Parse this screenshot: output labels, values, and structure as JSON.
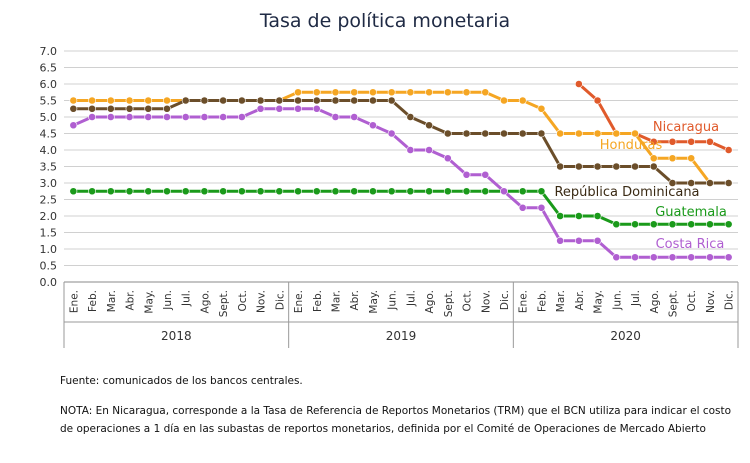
{
  "chart_data": {
    "type": "line",
    "title": "Tasa de política monetaria",
    "ylim": [
      0,
      7
    ],
    "yticks": [
      "7.0",
      "6.5",
      "6.0",
      "5.5",
      "5.0",
      "4.5",
      "4.0",
      "3.5",
      "3.0",
      "2.5",
      "2.0",
      "1.5",
      "1.0",
      "0.5",
      "0.0"
    ],
    "months": [
      "Ene.",
      "Feb.",
      "Mar.",
      "Abr.",
      "May.",
      "Jun.",
      "Jul.",
      "Ago.",
      "Sept.",
      "Oct.",
      "Nov.",
      "Dic."
    ],
    "years": [
      "2018",
      "2019",
      "2020"
    ],
    "grid": true,
    "series": [
      {
        "name": "Nicaragua",
        "color": "#e05a2b",
        "values": [
          null,
          null,
          null,
          null,
          null,
          null,
          null,
          null,
          null,
          null,
          null,
          null,
          null,
          null,
          null,
          null,
          null,
          null,
          null,
          null,
          null,
          null,
          null,
          null,
          null,
          null,
          null,
          6.0,
          5.5,
          4.5,
          4.5,
          4.25,
          4.25,
          4.25,
          4.25,
          4.0
        ]
      },
      {
        "name": "Honduras",
        "color": "#f5a623",
        "values": [
          5.5,
          5.5,
          5.5,
          5.5,
          5.5,
          5.5,
          5.5,
          5.5,
          5.5,
          5.5,
          5.5,
          5.5,
          5.75,
          5.75,
          5.75,
          5.75,
          5.75,
          5.75,
          5.75,
          5.75,
          5.75,
          5.75,
          5.75,
          5.5,
          5.5,
          5.25,
          4.5,
          4.5,
          4.5,
          4.5,
          4.5,
          3.75,
          3.75,
          3.75,
          3.0,
          3.0
        ]
      },
      {
        "name": "República Dominicana",
        "color": "#6b4e2a",
        "values": [
          5.25,
          5.25,
          5.25,
          5.25,
          5.25,
          5.25,
          5.5,
          5.5,
          5.5,
          5.5,
          5.5,
          5.5,
          5.5,
          5.5,
          5.5,
          5.5,
          5.5,
          5.5,
          5.0,
          4.75,
          4.5,
          4.5,
          4.5,
          4.5,
          4.5,
          4.5,
          3.5,
          3.5,
          3.5,
          3.5,
          3.5,
          3.5,
          3.0,
          3.0,
          3.0,
          3.0
        ]
      },
      {
        "name": "Guatemala",
        "color": "#1a9a1a",
        "values": [
          2.75,
          2.75,
          2.75,
          2.75,
          2.75,
          2.75,
          2.75,
          2.75,
          2.75,
          2.75,
          2.75,
          2.75,
          2.75,
          2.75,
          2.75,
          2.75,
          2.75,
          2.75,
          2.75,
          2.75,
          2.75,
          2.75,
          2.75,
          2.75,
          2.75,
          2.75,
          2.0,
          2.0,
          2.0,
          1.75,
          1.75,
          1.75,
          1.75,
          1.75,
          1.75,
          1.75
        ]
      },
      {
        "name": "Costa Rica",
        "color": "#b05fd1",
        "values": [
          4.75,
          5.0,
          5.0,
          5.0,
          5.0,
          5.0,
          5.0,
          5.0,
          5.0,
          5.0,
          5.25,
          5.25,
          5.25,
          5.25,
          5.0,
          5.0,
          4.75,
          4.5,
          4.0,
          4.0,
          3.75,
          3.25,
          3.25,
          2.75,
          2.25,
          2.25,
          1.25,
          1.25,
          1.25,
          0.75,
          0.75,
          0.75,
          0.75,
          0.75,
          0.75,
          0.75
        ]
      }
    ]
  },
  "notes": {
    "source": "Fuente: comunicados de los bancos centrales.",
    "nota": "NOTA: En Nicaragua, corresponde a la Tasa de Referencia de Reportos Monetarios (TRM) que el BCN utiliza para indicar el costo de operaciones a 1 día en las subastas de reportos monetarios, definida por el Comité de Operaciones de Mercado Abierto"
  }
}
